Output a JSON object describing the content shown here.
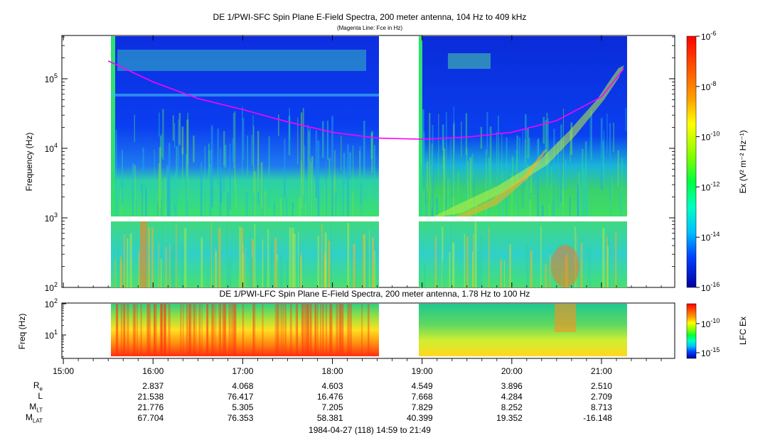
{
  "chart_data": [
    {
      "type": "heatmap",
      "title": "DE 1/PWI-SFC  Spin Plane E-Field Spectra, 200 meter antenna, 104 Hz to 409 kHz",
      "subtitle": "(Magenta Line: Fce in Hz)",
      "ylabel": "Frequency (Hz)",
      "yscale": "log",
      "ylim": [
        100,
        409000
      ],
      "yticks": [
        {
          "value": 100,
          "base": "10",
          "exp": "2"
        },
        {
          "value": 1000,
          "base": "10",
          "exp": "3"
        },
        {
          "value": 10000,
          "base": "10",
          "exp": "4"
        },
        {
          "value": 100000,
          "base": "10",
          "exp": "5"
        }
      ],
      "colorbar": {
        "label": "Ex (V² m⁻² Hz⁻¹)",
        "scale": "log",
        "range": [
          1e-16,
          1e-06
        ],
        "ticks": [
          {
            "base": "10",
            "exp": "-6"
          },
          {
            "base": "10",
            "exp": "-8"
          },
          {
            "base": "10",
            "exp": "-10"
          },
          {
            "base": "10",
            "exp": "-12"
          },
          {
            "base": "10",
            "exp": "-14"
          },
          {
            "base": "10",
            "exp": "-16"
          }
        ]
      },
      "data_gaps": [
        {
          "from": "14:59",
          "to": "15:30"
        },
        {
          "from": "18:30",
          "to": "18:58"
        },
        {
          "from": "21:16",
          "to": "21:49"
        }
      ],
      "fce_line": {
        "color": "#ff00ff",
        "points": [
          {
            "time": "15:30",
            "freq": 180000
          },
          {
            "time": "16:00",
            "freq": 90000
          },
          {
            "time": "16:30",
            "freq": 52000
          },
          {
            "time": "17:00",
            "freq": 36000
          },
          {
            "time": "17:30",
            "freq": 24000
          },
          {
            "time": "18:00",
            "freq": 17000
          },
          {
            "time": "18:30",
            "freq": 14000
          },
          {
            "time": "19:00",
            "freq": 13500
          },
          {
            "time": "19:30",
            "freq": 14500
          },
          {
            "time": "20:00",
            "freq": 17000
          },
          {
            "time": "20:30",
            "freq": 25000
          },
          {
            "time": "21:00",
            "freq": 55000
          },
          {
            "time": "21:15",
            "freq": 140000
          }
        ]
      }
    },
    {
      "type": "heatmap",
      "title": "DE 1/PWI-LFC  Spin Plane E-Field Spectra, 200 meter antenna, 1.78 Hz to 100 Hz",
      "ylabel": "Freq (Hz)",
      "yscale": "log",
      "ylim": [
        1.78,
        100
      ],
      "yticks": [
        {
          "value": 10,
          "base": "10",
          "exp": "1"
        },
        {
          "value": 100,
          "base": "10",
          "exp": "2"
        }
      ],
      "colorbar": {
        "label": "LFC Ex",
        "ticks": [
          {
            "base": "10",
            "exp": "-10"
          },
          {
            "base": "10",
            "exp": "-15"
          }
        ]
      }
    }
  ],
  "x_axis": {
    "time_range": [
      "14:59",
      "21:49"
    ],
    "ticks": [
      "15:00",
      "16:00",
      "17:00",
      "18:00",
      "19:00",
      "20:00",
      "21:00"
    ]
  },
  "ephemeris": {
    "rows": [
      {
        "name": "R",
        "sub": "e",
        "values": [
          "2.837",
          "4.068",
          "4.603",
          "4.549",
          "3.896",
          "2.510"
        ]
      },
      {
        "name": "L",
        "sub": "",
        "values": [
          "21.538",
          "76.417",
          "16.476",
          "7.668",
          "4.284",
          "2.709"
        ]
      },
      {
        "name": "M",
        "sub": "LT",
        "values": [
          "21.776",
          "5.305",
          "7.205",
          "7.829",
          "8.252",
          "8.713"
        ]
      },
      {
        "name": "M",
        "sub": "LAT",
        "values": [
          "67.704",
          "76.353",
          "58.381",
          "40.399",
          "19.352",
          "-16.148"
        ]
      }
    ]
  },
  "footer": "1984-04-27 (118) 14:59 to 21:49"
}
